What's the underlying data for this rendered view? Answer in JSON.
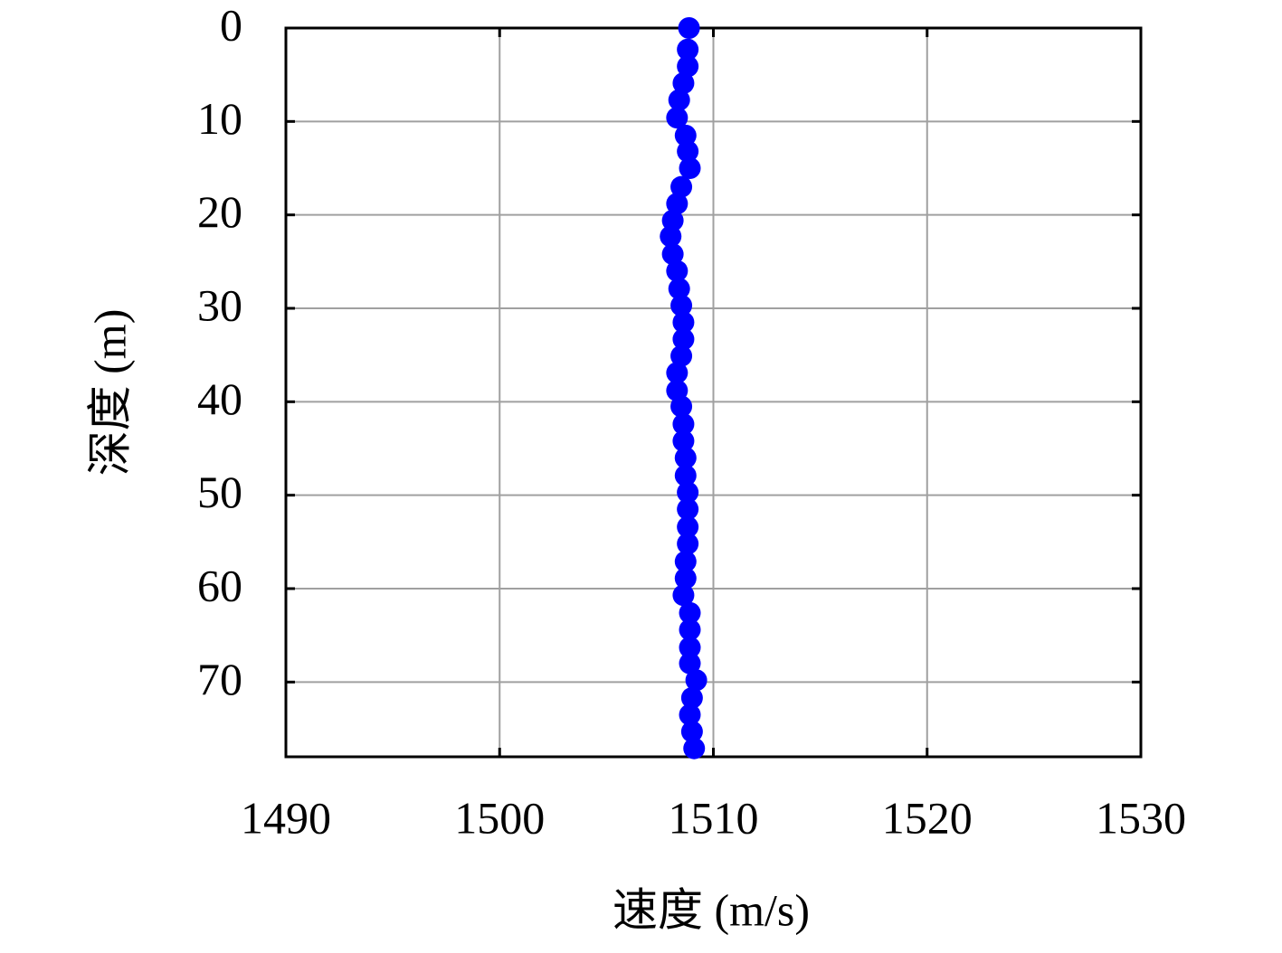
{
  "chart_data": {
    "type": "scatter",
    "xlabel": "速度 (m/s)",
    "ylabel": "深度 (m)",
    "xlim": [
      1490,
      1530
    ],
    "xticks": [
      1490,
      1500,
      1510,
      1520,
      1530
    ],
    "ylim": [
      0,
      78
    ],
    "yticks": [
      0,
      10,
      20,
      30,
      40,
      50,
      60,
      70
    ],
    "y_inverted": true,
    "grid": true,
    "series": [
      {
        "color": "#0000ff",
        "x": [
          1508.86,
          1508.8,
          1508.8,
          1508.6,
          1508.4,
          1508.3,
          1508.7,
          1508.8,
          1508.9,
          1508.5,
          1508.3,
          1508.1,
          1508.0,
          1508.1,
          1508.3,
          1508.4,
          1508.5,
          1508.6,
          1508.6,
          1508.5,
          1508.3,
          1508.3,
          1508.5,
          1508.6,
          1508.6,
          1508.7,
          1508.7,
          1508.8,
          1508.8,
          1508.8,
          1508.8,
          1508.7,
          1508.7,
          1508.6,
          1508.9,
          1508.9,
          1508.9,
          1508.9,
          1509.2,
          1509.0,
          1508.9,
          1509.0,
          1509.1
        ],
        "values": [
          0,
          2.3,
          4.1,
          5.9,
          7.7,
          9.6,
          11.5,
          13.2,
          15.0,
          17.0,
          18.8,
          20.6,
          22.3,
          24.2,
          26.0,
          27.9,
          29.7,
          31.5,
          33.3,
          35.1,
          36.9,
          38.8,
          40.5,
          42.4,
          44.2,
          46.0,
          47.9,
          49.7,
          51.5,
          53.4,
          55.2,
          57.1,
          58.9,
          60.7,
          62.6,
          64.4,
          66.3,
          68.0,
          69.8,
          71.7,
          73.5,
          75.3,
          77.1
        ]
      }
    ]
  }
}
